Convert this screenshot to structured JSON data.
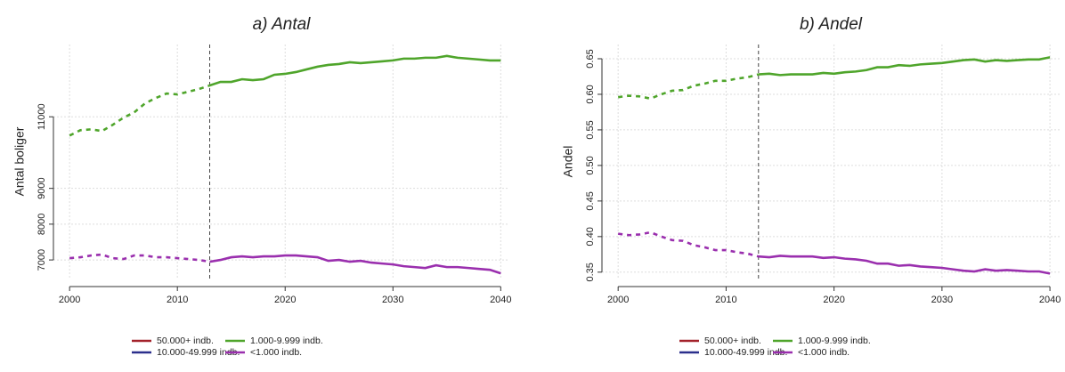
{
  "chart_data": [
    {
      "type": "line",
      "title": "a) Antal",
      "y_label": "Antal boliger",
      "x": [
        2000,
        2001,
        2002,
        2003,
        2004,
        2005,
        2006,
        2007,
        2008,
        2009,
        2010,
        2011,
        2012,
        2013,
        2014,
        2015,
        2016,
        2017,
        2018,
        2019,
        2020,
        2021,
        2022,
        2023,
        2024,
        2025,
        2026,
        2027,
        2028,
        2029,
        2030,
        2031,
        2032,
        2033,
        2034,
        2035,
        2036,
        2037,
        2038,
        2039,
        2040
      ],
      "xlim": [
        1998.5,
        2040.8
      ],
      "xticks": [
        2000,
        2010,
        2020,
        2030,
        2040
      ],
      "ylim": [
        6480,
        13020
      ],
      "yticks": [
        7000,
        8000,
        9000,
        11000
      ],
      "grid": true,
      "dashed_until": 2013,
      "vline": 2013,
      "series": [
        {
          "name": "50.000+ indb.",
          "color": "#a3222a",
          "values": [
            null,
            null,
            null,
            null,
            null,
            null,
            null,
            null,
            null,
            null,
            null,
            null,
            null,
            null,
            null,
            null,
            null,
            null,
            null,
            null,
            null,
            null,
            null,
            null,
            null,
            null,
            null,
            null,
            null,
            null,
            null,
            null,
            null,
            null,
            null,
            null,
            null,
            null,
            null,
            null,
            null
          ]
        },
        {
          "name": "10.000-49.999 indb.",
          "color": "#2b2f8c",
          "values": [
            null,
            null,
            null,
            null,
            null,
            null,
            null,
            null,
            null,
            null,
            null,
            null,
            null,
            null,
            null,
            null,
            null,
            null,
            null,
            null,
            null,
            null,
            null,
            null,
            null,
            null,
            null,
            null,
            null,
            null,
            null,
            null,
            null,
            null,
            null,
            null,
            null,
            null,
            null,
            null,
            null
          ]
        },
        {
          "name": "1.000-9.999 indb.",
          "color": "#4fa52b",
          "values": [
            10475,
            10625,
            10650,
            10600,
            10775,
            10975,
            11125,
            11375,
            11525,
            11650,
            11625,
            11700,
            11775,
            11875,
            11975,
            11975,
            12050,
            12025,
            12050,
            12175,
            12200,
            12250,
            12325,
            12400,
            12450,
            12475,
            12525,
            12500,
            12525,
            12550,
            12575,
            12625,
            12625,
            12650,
            12650,
            12700,
            12650,
            12625,
            12600,
            12575,
            12575
          ]
        },
        {
          "name": "<1.000 indb.",
          "color": "#9a2fae",
          "values": [
            7050,
            7075,
            7125,
            7150,
            7050,
            7025,
            7125,
            7125,
            7075,
            7075,
            7050,
            7025,
            7000,
            6950,
            7000,
            7075,
            7100,
            7075,
            7100,
            7100,
            7125,
            7125,
            7100,
            7075,
            6975,
            7000,
            6950,
            6975,
            6925,
            6900,
            6875,
            6825,
            6800,
            6775,
            6850,
            6800,
            6800,
            6775,
            6750,
            6725,
            6625
          ]
        }
      ]
    },
    {
      "type": "line",
      "title": "b) Andel",
      "y_label": "Andel",
      "x": [
        2000,
        2001,
        2002,
        2003,
        2004,
        2005,
        2006,
        2007,
        2008,
        2009,
        2010,
        2011,
        2012,
        2013,
        2014,
        2015,
        2016,
        2017,
        2018,
        2019,
        2020,
        2021,
        2022,
        2023,
        2024,
        2025,
        2026,
        2027,
        2028,
        2029,
        2030,
        2031,
        2032,
        2033,
        2034,
        2035,
        2036,
        2037,
        2038,
        2039,
        2040
      ],
      "xlim": [
        1998.5,
        2040.9
      ],
      "xticks": [
        2000,
        2010,
        2020,
        2030,
        2040
      ],
      "ylim": [
        0.341,
        0.67
      ],
      "yticks": [
        0.35,
        {
          "value": 0.4,
          "label": "0.40"
        },
        0.45,
        {
          "value": 0.5,
          "label": "0.50"
        },
        0.55,
        {
          "value": 0.6,
          "label": "0.60"
        },
        0.65
      ],
      "grid": true,
      "dashed_until": 2013,
      "vline": 2013,
      "series": [
        {
          "name": "50.000+ indb.",
          "color": "#a3222a",
          "values": [
            null,
            null,
            null,
            null,
            null,
            null,
            null,
            null,
            null,
            null,
            null,
            null,
            null,
            null,
            null,
            null,
            null,
            null,
            null,
            null,
            null,
            null,
            null,
            null,
            null,
            null,
            null,
            null,
            null,
            null,
            null,
            null,
            null,
            null,
            null,
            null,
            null,
            null,
            null,
            null,
            null
          ]
        },
        {
          "name": "10.000-49.999 indb.",
          "color": "#2b2f8c",
          "values": [
            null,
            null,
            null,
            null,
            null,
            null,
            null,
            null,
            null,
            null,
            null,
            null,
            null,
            null,
            null,
            null,
            null,
            null,
            null,
            null,
            null,
            null,
            null,
            null,
            null,
            null,
            null,
            null,
            null,
            null,
            null,
            null,
            null,
            null,
            null,
            null,
            null,
            null,
            null,
            null,
            null
          ]
        },
        {
          "name": "1.000-9.999 indb.",
          "color": "#4fa52b",
          "values": [
            0.596,
            0.598,
            0.597,
            0.594,
            0.6,
            0.605,
            0.606,
            0.612,
            0.615,
            0.619,
            0.619,
            0.622,
            0.624,
            0.628,
            0.629,
            0.627,
            0.628,
            0.628,
            0.628,
            0.63,
            0.629,
            0.631,
            0.632,
            0.634,
            0.638,
            0.638,
            0.641,
            0.64,
            0.642,
            0.643,
            0.644,
            0.646,
            0.648,
            0.649,
            0.646,
            0.648,
            0.647,
            0.648,
            0.649,
            0.649,
            0.652
          ]
        },
        {
          "name": "<1.000 indb.",
          "color": "#9a2fae",
          "values": [
            0.404,
            0.402,
            0.403,
            0.406,
            0.4,
            0.395,
            0.394,
            0.388,
            0.385,
            0.381,
            0.381,
            0.378,
            0.376,
            0.372,
            0.371,
            0.373,
            0.372,
            0.372,
            0.372,
            0.37,
            0.371,
            0.369,
            0.368,
            0.366,
            0.362,
            0.362,
            0.359,
            0.36,
            0.358,
            0.357,
            0.356,
            0.354,
            0.352,
            0.351,
            0.354,
            0.352,
            0.353,
            0.352,
            0.351,
            0.351,
            0.348
          ]
        }
      ]
    }
  ]
}
